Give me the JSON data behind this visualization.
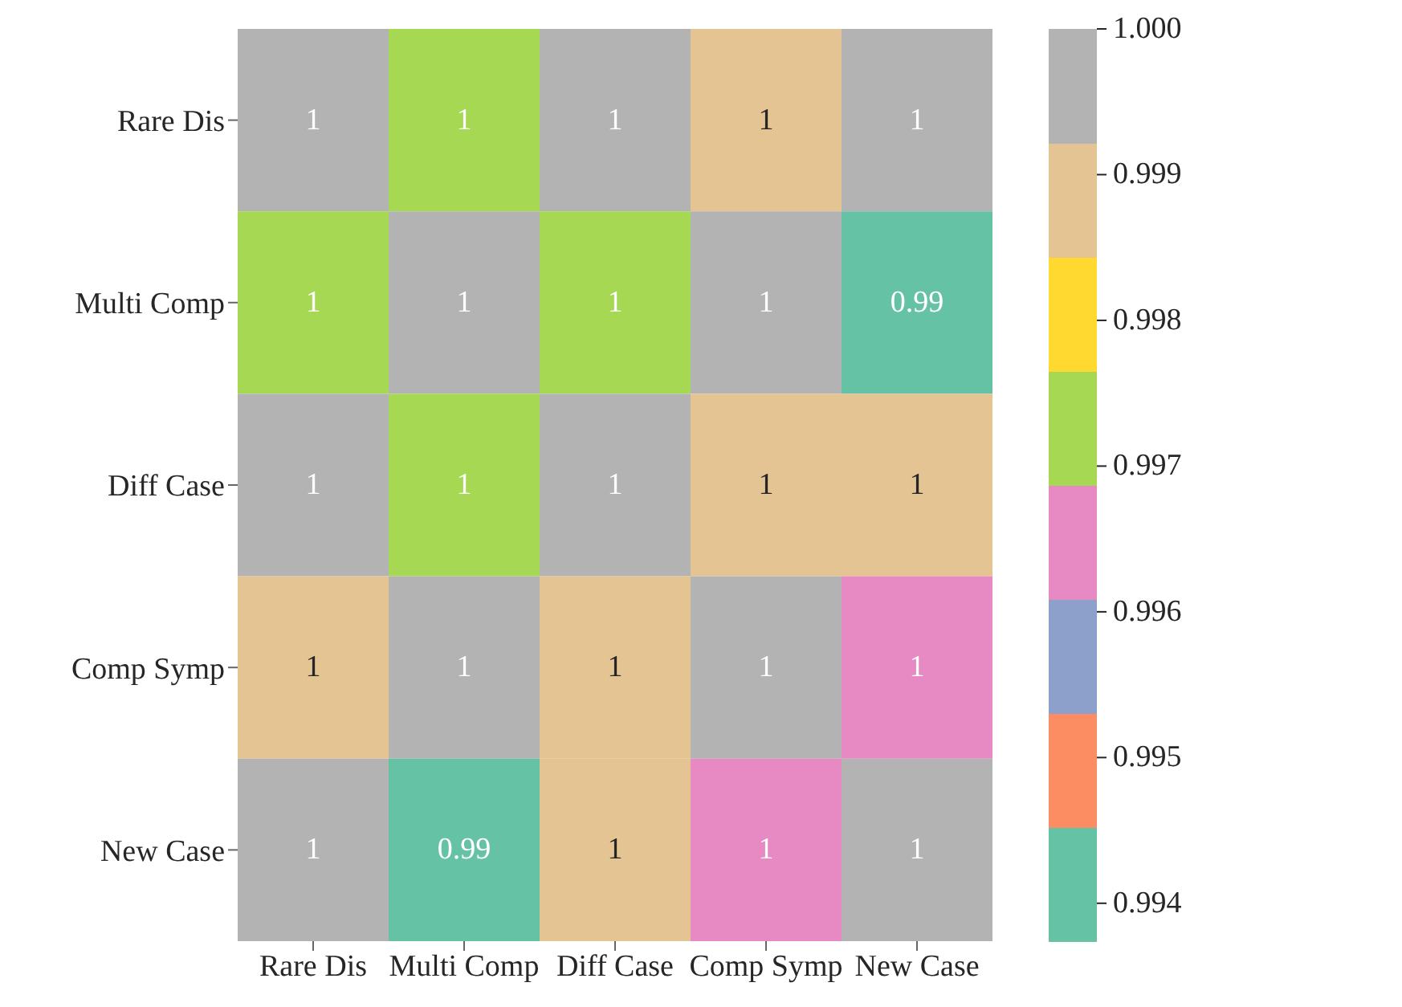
{
  "chart_data": {
    "type": "heatmap",
    "categories": [
      "Rare Dis",
      "Multi Comp",
      "Diff Case",
      "Comp Symp",
      "New Case"
    ],
    "y_categories": [
      "Rare Dis",
      "Multi Comp",
      "Diff Case",
      "Comp Symp",
      "New Case"
    ],
    "cells": [
      [
        1.0,
        0.9973,
        0.9996,
        0.9988,
        0.9996
      ],
      [
        0.9973,
        1.0,
        0.9973,
        0.9996,
        0.9941
      ],
      [
        0.9996,
        0.9973,
        1.0,
        0.9988,
        0.9988
      ],
      [
        0.9988,
        0.9996,
        0.9988,
        1.0,
        0.9965
      ],
      [
        0.9996,
        0.9941,
        0.9988,
        0.9965,
        1.0
      ]
    ],
    "cell_labels": [
      [
        "1",
        "1",
        "1",
        "1",
        "1"
      ],
      [
        "1",
        "1",
        "1",
        "1",
        "0.99"
      ],
      [
        "1",
        "1",
        "1",
        "1",
        "1"
      ],
      [
        "1",
        "1",
        "1",
        "1",
        "1"
      ],
      [
        "1",
        "0.99",
        "1",
        "1",
        "1"
      ]
    ],
    "colors": [
      "#66c2a5",
      "#fc8d62",
      "#8da0cb",
      "#e78ac3",
      "#a6d854",
      "#ffd92f",
      "#e5c494",
      "#b3b3b3"
    ],
    "clim": [
      0.99374,
      1.0
    ],
    "cticks": [
      {
        "value": 0.994,
        "label": "0.994"
      },
      {
        "value": 0.995,
        "label": "0.995"
      },
      {
        "value": 0.996,
        "label": "0.996"
      },
      {
        "value": 0.997,
        "label": "0.997"
      },
      {
        "value": 0.998,
        "label": "0.998"
      },
      {
        "value": 0.999,
        "label": "0.999"
      },
      {
        "value": 1.0,
        "label": "1.000"
      }
    ]
  }
}
